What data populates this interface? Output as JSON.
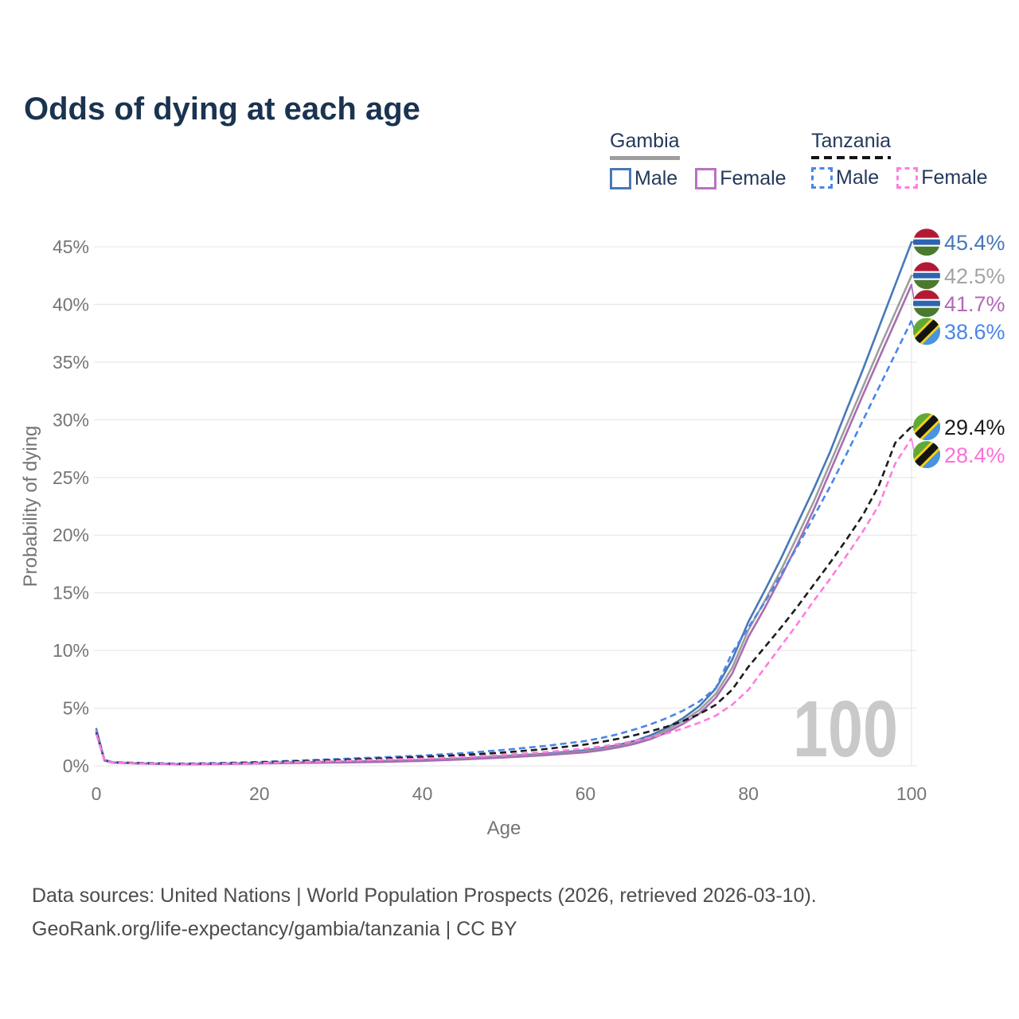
{
  "title": "Odds of dying at each age",
  "legend": {
    "groups": [
      {
        "label": "Gambia",
        "line_style": "solid",
        "underline_color": "#9e9e9e",
        "items": [
          {
            "label": "Male",
            "color": "#4878b8",
            "dashed": false
          },
          {
            "label": "Female",
            "color": "#bb72c0",
            "dashed": false
          }
        ]
      },
      {
        "label": "Tanzania",
        "line_style": "dashed",
        "underline_color": "#141414",
        "items": [
          {
            "label": "Male",
            "color": "#4a86e8",
            "dashed": true
          },
          {
            "label": "Female",
            "color": "#ff7ddf",
            "dashed": true
          }
        ]
      }
    ]
  },
  "chart_data": {
    "type": "line",
    "title": "Odds of dying at each age",
    "xlabel": "Age",
    "ylabel": "Probability of dying",
    "xlim": [
      0,
      100
    ],
    "ylim": [
      0,
      45
    ],
    "x_ticks": [
      0,
      20,
      40,
      60,
      80,
      100
    ],
    "y_ticks": [
      0,
      5,
      10,
      15,
      20,
      25,
      30,
      35,
      40,
      45
    ],
    "y_tick_suffix": "%",
    "grid": true,
    "watermark": "100",
    "x": [
      0,
      1,
      2,
      5,
      10,
      15,
      20,
      25,
      30,
      35,
      40,
      45,
      50,
      55,
      60,
      62,
      64,
      66,
      68,
      70,
      72,
      74,
      76,
      78,
      80,
      82,
      84,
      86,
      88,
      90,
      92,
      94,
      96,
      98,
      100
    ],
    "series": [
      {
        "name": "Gambia Male",
        "country": "Gambia",
        "sex": "male",
        "color": "#4878b8",
        "label_color": "#4878b8",
        "dashed": false,
        "flag": "gambia-flag",
        "end_label": "45.4%",
        "values": [
          3.2,
          0.5,
          0.3,
          0.22,
          0.15,
          0.18,
          0.26,
          0.31,
          0.36,
          0.42,
          0.52,
          0.65,
          0.85,
          1.05,
          1.35,
          1.55,
          1.8,
          2.15,
          2.65,
          3.3,
          4.15,
          5.2,
          6.7,
          9.2,
          12.5,
          15.2,
          18.0,
          21.0,
          24.0,
          27.2,
          30.8,
          34.3,
          38.0,
          41.7,
          45.4
        ]
      },
      {
        "name": "Gambia",
        "country": "Gambia",
        "sex": "both",
        "color": "#9e9e9e",
        "label_color": "#a3a3a3",
        "dashed": false,
        "flag": "gambia-flag",
        "end_label": "42.5%",
        "values": [
          3.05,
          0.47,
          0.28,
          0.21,
          0.14,
          0.16,
          0.23,
          0.28,
          0.32,
          0.38,
          0.47,
          0.6,
          0.78,
          0.97,
          1.25,
          1.44,
          1.68,
          2.0,
          2.45,
          3.1,
          3.9,
          4.85,
          6.25,
          8.5,
          11.8,
          14.3,
          17.0,
          19.9,
          22.9,
          26.2,
          29.5,
          32.8,
          36.1,
          39.3,
          42.5
        ]
      },
      {
        "name": "Gambia Female",
        "country": "Gambia",
        "sex": "female",
        "color": "#a96cb2",
        "label_color": "#b468b8",
        "dashed": false,
        "flag": "gambia-flag",
        "end_label": "41.7%",
        "values": [
          2.9,
          0.45,
          0.27,
          0.2,
          0.13,
          0.15,
          0.2,
          0.25,
          0.29,
          0.34,
          0.43,
          0.55,
          0.72,
          0.92,
          1.18,
          1.36,
          1.6,
          1.9,
          2.32,
          2.9,
          3.65,
          4.55,
          5.9,
          8.0,
          11.2,
          13.7,
          16.4,
          19.2,
          22.2,
          25.5,
          28.8,
          32.1,
          35.3,
          38.5,
          41.7
        ]
      },
      {
        "name": "Tanzania Male",
        "country": "Tanzania",
        "sex": "male",
        "color": "#4a86e8",
        "label_color": "#4a86e8",
        "dashed": true,
        "flag": "tanzania-flag",
        "end_label": "38.6%",
        "values": [
          3.0,
          0.52,
          0.32,
          0.26,
          0.19,
          0.24,
          0.34,
          0.46,
          0.6,
          0.74,
          0.9,
          1.1,
          1.38,
          1.72,
          2.15,
          2.42,
          2.75,
          3.15,
          3.6,
          4.15,
          4.8,
          5.6,
          6.75,
          9.8,
          12.0,
          14.2,
          16.6,
          19.0,
          21.6,
          24.2,
          27.0,
          29.9,
          32.8,
          35.7,
          38.6
        ]
      },
      {
        "name": "Tanzania",
        "country": "Tanzania",
        "sex": "both",
        "color": "#1c1c1c",
        "label_color": "#1c1c1c",
        "dashed": true,
        "flag": "tanzania-flag",
        "end_label": "29.4%",
        "values": [
          2.85,
          0.5,
          0.3,
          0.24,
          0.17,
          0.21,
          0.3,
          0.4,
          0.52,
          0.64,
          0.77,
          0.94,
          1.16,
          1.45,
          1.85,
          2.08,
          2.35,
          2.65,
          3.0,
          3.4,
          3.9,
          4.5,
          5.3,
          6.6,
          8.6,
          10.3,
          12.0,
          13.8,
          15.7,
          17.6,
          19.6,
          21.7,
          24.3,
          28.0,
          29.4
        ]
      },
      {
        "name": "Tanzania Female",
        "country": "Tanzania",
        "sex": "female",
        "color": "#ff7ddf",
        "label_color": "#ff6fd8",
        "dashed": true,
        "flag": "tanzania-flag",
        "end_label": "28.4%",
        "values": [
          2.75,
          0.48,
          0.28,
          0.22,
          0.15,
          0.18,
          0.24,
          0.33,
          0.43,
          0.53,
          0.63,
          0.77,
          0.95,
          1.18,
          1.5,
          1.68,
          1.9,
          2.16,
          2.46,
          2.82,
          3.25,
          3.75,
          4.35,
          5.3,
          6.6,
          8.5,
          10.4,
          12.3,
          14.3,
          16.2,
          18.2,
          20.3,
          22.6,
          26.2,
          28.4
        ]
      }
    ],
    "flag_colors": {
      "gambia": {
        "red": "#b31935",
        "white": "#ffffff",
        "blue": "#2e63b0",
        "green": "#4a7a2e"
      },
      "tanzania": {
        "green": "#5fa938",
        "blue": "#4a93e0",
        "yellow": "#f2d11b",
        "black": "#141414"
      }
    },
    "style": {
      "grid_color": "#e9e9e9",
      "tick_color": "#757575",
      "watermark_color": "#c9c9c9"
    }
  },
  "footer": {
    "line1": "Data sources: United Nations | World Population Prospects (2026, retrieved 2026-03-10).",
    "line2": "GeoRank.org/life-expectancy/gambia/tanzania | CC BY"
  }
}
